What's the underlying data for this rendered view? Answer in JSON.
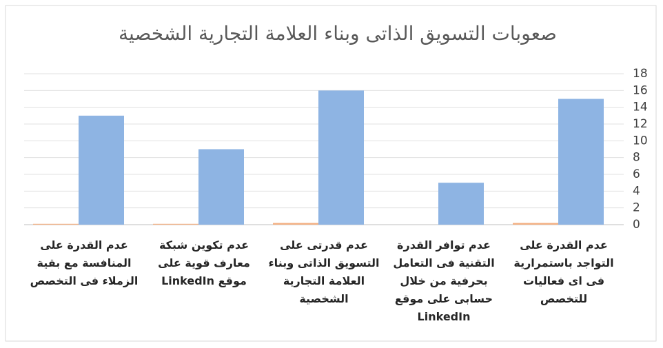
{
  "chart_data": {
    "type": "bar",
    "title": "صعوبات التسويق الذاتى وبناء العلامة التجارية الشخصية",
    "categories": [
      "عدم القدرة على التواجد باستمرارية فى اى فعاليات للتخصص",
      "عدم توافر القدرة التقنية فى التعامل بحرفية من خلال حسابى على موقع LinkedIn",
      "عدم قدرتى على التسويق الذاتى وبناء العلامة التجارية الشخصية",
      "عدم تكوين شبكة معارف قوية على موقع LinkedIn",
      "عدم القدرة على المنافسة مع بقية الزملاء فى التخصص"
    ],
    "series": [
      {
        "color": "#8eb4e3",
        "values": [
          15,
          5,
          16,
          9,
          13
        ]
      },
      {
        "color": "#f4b183",
        "values": [
          0.2,
          0,
          0.2,
          0.1,
          0.1
        ]
      }
    ],
    "ylim": [
      0,
      18
    ],
    "yticks": [
      0,
      2,
      4,
      6,
      8,
      10,
      12,
      14,
      16,
      18
    ],
    "grid": true,
    "direction": "rtl"
  }
}
